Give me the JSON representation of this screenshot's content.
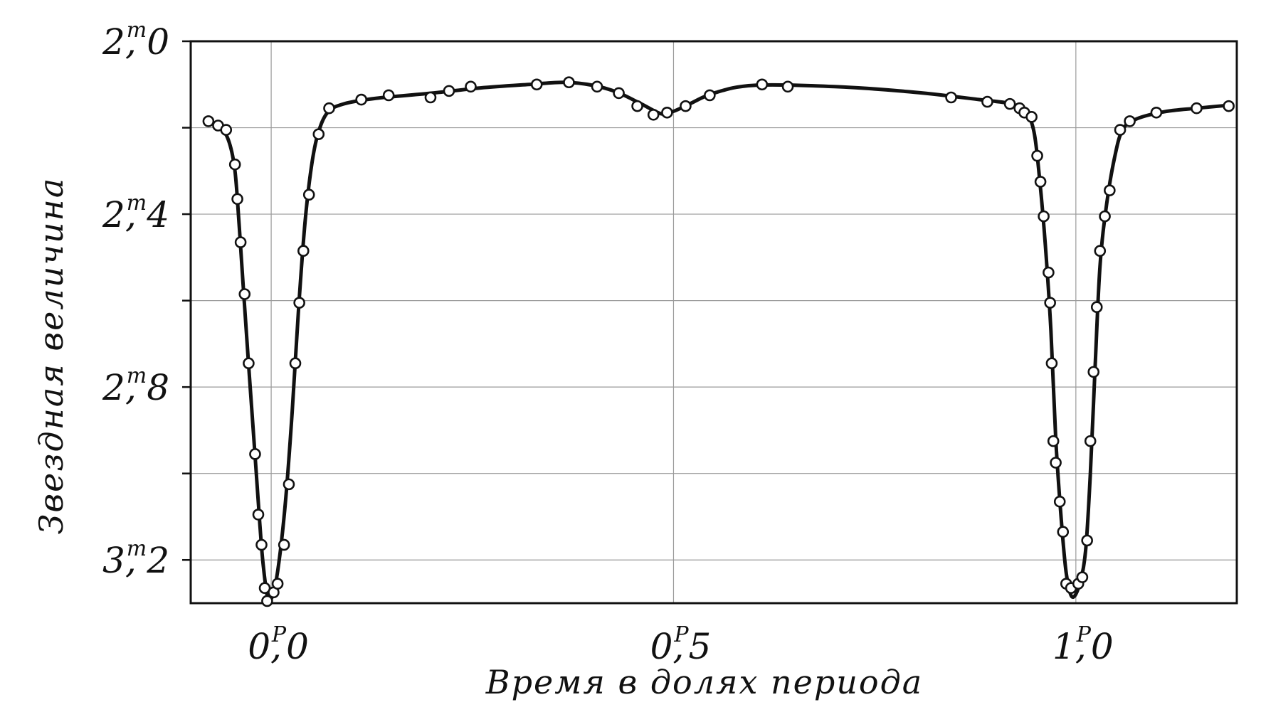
{
  "chart_data": {
    "type": "scatter",
    "title": "",
    "xlabel": "Время в долях периода",
    "ylabel": "Звездная величина",
    "xlim": [
      -0.1,
      1.2
    ],
    "ylim": [
      3.3,
      2.0
    ],
    "y_inverted": true,
    "grid": true,
    "x_gridlines": [
      0.0,
      0.5,
      1.0
    ],
    "y_gridlines": [
      2.2,
      2.4,
      2.6,
      2.8,
      3.0,
      3.2
    ],
    "x_ticks": [
      {
        "value": 0.0,
        "main": "0",
        "sup": "P",
        "tail": "0"
      },
      {
        "value": 0.5,
        "main": "0",
        "sup": "P",
        "tail": "5"
      },
      {
        "value": 1.0,
        "main": "1",
        "sup": "P",
        "tail": "0"
      }
    ],
    "y_ticks": [
      {
        "value": 2.0,
        "main": "2",
        "sup": "m",
        "tail": "0"
      },
      {
        "value": 2.4,
        "main": "2",
        "sup": "m",
        "tail": "4"
      },
      {
        "value": 2.8,
        "main": "2",
        "sup": "m",
        "tail": "8"
      },
      {
        "value": 3.2,
        "main": "3",
        "sup": "m",
        "tail": "2"
      }
    ],
    "series": [
      {
        "points": [
          [
            -0.078,
            2.185
          ],
          [
            -0.066,
            2.195
          ],
          [
            -0.056,
            2.205
          ],
          [
            -0.045,
            2.285
          ],
          [
            -0.042,
            2.365
          ],
          [
            -0.038,
            2.465
          ],
          [
            -0.033,
            2.585
          ],
          [
            -0.028,
            2.745
          ],
          [
            -0.02,
            2.955
          ],
          [
            -0.016,
            3.095
          ],
          [
            -0.012,
            3.165
          ],
          [
            -0.008,
            3.265
          ],
          [
            -0.005,
            3.295
          ],
          [
            0.003,
            3.275
          ],
          [
            0.008,
            3.255
          ],
          [
            0.016,
            3.165
          ],
          [
            0.022,
            3.025
          ],
          [
            0.03,
            2.745
          ],
          [
            0.035,
            2.605
          ],
          [
            0.04,
            2.485
          ],
          [
            0.047,
            2.355
          ],
          [
            0.059,
            2.215
          ],
          [
            0.072,
            2.155
          ],
          [
            0.112,
            2.135
          ],
          [
            0.146,
            2.125
          ],
          [
            0.198,
            2.13
          ],
          [
            0.221,
            2.115
          ],
          [
            0.248,
            2.105
          ],
          [
            0.33,
            2.1
          ],
          [
            0.37,
            2.095
          ],
          [
            0.405,
            2.105
          ],
          [
            0.432,
            2.12
          ],
          [
            0.455,
            2.15
          ],
          [
            0.475,
            2.17
          ],
          [
            0.492,
            2.165
          ],
          [
            0.515,
            2.15
          ],
          [
            0.545,
            2.125
          ],
          [
            0.61,
            2.1
          ],
          [
            0.642,
            2.105
          ],
          [
            0.845,
            2.13
          ],
          [
            0.89,
            2.14
          ],
          [
            0.918,
            2.145
          ],
          [
            0.93,
            2.155
          ],
          [
            0.936,
            2.165
          ],
          [
            0.945,
            2.175
          ],
          [
            0.952,
            2.265
          ],
          [
            0.956,
            2.325
          ],
          [
            0.96,
            2.405
          ],
          [
            0.966,
            2.535
          ],
          [
            0.968,
            2.605
          ],
          [
            0.97,
            2.745
          ],
          [
            0.972,
            2.925
          ],
          [
            0.975,
            2.975
          ],
          [
            0.98,
            3.065
          ],
          [
            0.984,
            3.135
          ],
          [
            0.988,
            3.255
          ],
          [
            0.994,
            3.265
          ],
          [
            1.003,
            3.255
          ],
          [
            1.008,
            3.24
          ],
          [
            1.014,
            3.155
          ],
          [
            1.018,
            2.925
          ],
          [
            1.022,
            2.765
          ],
          [
            1.026,
            2.615
          ],
          [
            1.03,
            2.485
          ],
          [
            1.036,
            2.405
          ],
          [
            1.042,
            2.345
          ],
          [
            1.055,
            2.205
          ],
          [
            1.067,
            2.185
          ],
          [
            1.1,
            2.165
          ],
          [
            1.15,
            2.155
          ],
          [
            1.19,
            2.15
          ]
        ],
        "curve": [
          [
            -0.078,
            2.185
          ],
          [
            -0.062,
            2.2
          ],
          [
            -0.052,
            2.235
          ],
          [
            -0.045,
            2.3
          ],
          [
            -0.04,
            2.42
          ],
          [
            -0.035,
            2.56
          ],
          [
            -0.028,
            2.75
          ],
          [
            -0.02,
            2.96
          ],
          [
            -0.014,
            3.12
          ],
          [
            -0.01,
            3.21
          ],
          [
            -0.004,
            3.29
          ],
          [
            0.003,
            3.275
          ],
          [
            0.01,
            3.2
          ],
          [
            0.018,
            3.06
          ],
          [
            0.026,
            2.86
          ],
          [
            0.034,
            2.62
          ],
          [
            0.042,
            2.42
          ],
          [
            0.05,
            2.29
          ],
          [
            0.058,
            2.215
          ],
          [
            0.07,
            2.165
          ],
          [
            0.09,
            2.145
          ],
          [
            0.13,
            2.132
          ],
          [
            0.2,
            2.12
          ],
          [
            0.26,
            2.108
          ],
          [
            0.32,
            2.1
          ],
          [
            0.365,
            2.095
          ],
          [
            0.4,
            2.102
          ],
          [
            0.43,
            2.118
          ],
          [
            0.46,
            2.145
          ],
          [
            0.485,
            2.168
          ],
          [
            0.5,
            2.162
          ],
          [
            0.52,
            2.145
          ],
          [
            0.55,
            2.12
          ],
          [
            0.6,
            2.102
          ],
          [
            0.7,
            2.105
          ],
          [
            0.8,
            2.118
          ],
          [
            0.88,
            2.135
          ],
          [
            0.92,
            2.145
          ],
          [
            0.938,
            2.165
          ],
          [
            0.948,
            2.21
          ],
          [
            0.955,
            2.32
          ],
          [
            0.962,
            2.47
          ],
          [
            0.969,
            2.67
          ],
          [
            0.975,
            2.92
          ],
          [
            0.982,
            3.11
          ],
          [
            0.988,
            3.23
          ],
          [
            0.995,
            3.285
          ],
          [
            1.004,
            3.26
          ],
          [
            1.012,
            3.18
          ],
          [
            1.018,
            3.0
          ],
          [
            1.024,
            2.75
          ],
          [
            1.03,
            2.52
          ],
          [
            1.038,
            2.38
          ],
          [
            1.048,
            2.27
          ],
          [
            1.058,
            2.205
          ],
          [
            1.075,
            2.18
          ],
          [
            1.11,
            2.163
          ],
          [
            1.15,
            2.155
          ],
          [
            1.19,
            2.148
          ]
        ]
      }
    ]
  }
}
